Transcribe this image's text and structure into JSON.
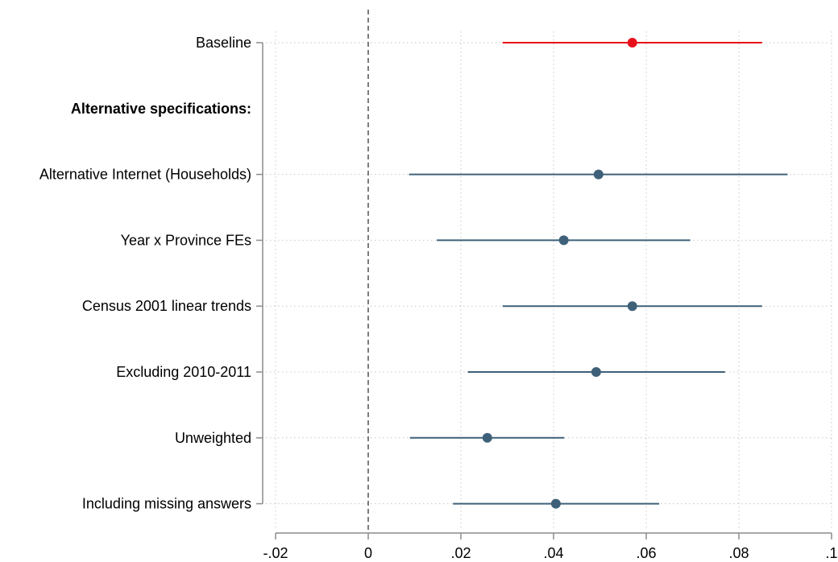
{
  "chart_data": {
    "type": "coefficient_plot",
    "title": "",
    "xlabel": "",
    "ylabel": "",
    "xlim": [
      -0.02,
      0.1
    ],
    "x_ticks": [
      {
        "value": -0.02,
        "label": "-.02"
      },
      {
        "value": 0,
        "label": "0"
      },
      {
        "value": 0.02,
        "label": ".02"
      },
      {
        "value": 0.04,
        "label": ".04"
      },
      {
        "value": 0.06,
        "label": ".06"
      },
      {
        "value": 0.08,
        "label": ".08"
      },
      {
        "value": 0.1,
        "label": ".1"
      }
    ],
    "reference_line": {
      "value": 0,
      "style": "dashed"
    },
    "grid": true,
    "rows": [
      {
        "label": "Baseline",
        "estimate": 0.057,
        "ci_low": 0.029,
        "ci_high": 0.085,
        "color": "#e8101a",
        "bold": false,
        "has_point": true
      },
      {
        "label": "Alternative specifications:",
        "bold": true,
        "has_point": false
      },
      {
        "label": "Alternative Internet (Households)",
        "estimate": 0.0497,
        "ci_low": 0.0088,
        "ci_high": 0.0905,
        "color": "#3e6179",
        "bold": false,
        "has_point": true
      },
      {
        "label": "Year x Province FEs",
        "estimate": 0.0422,
        "ci_low": 0.0148,
        "ci_high": 0.0695,
        "color": "#3e6179",
        "bold": false,
        "has_point": true
      },
      {
        "label": "Census 2001 linear trends",
        "estimate": 0.057,
        "ci_low": 0.029,
        "ci_high": 0.085,
        "color": "#3e6179",
        "bold": false,
        "has_point": true
      },
      {
        "label": "Excluding 2010-2011",
        "estimate": 0.0492,
        "ci_low": 0.0215,
        "ci_high": 0.077,
        "color": "#3e6179",
        "bold": false,
        "has_point": true
      },
      {
        "label": "Unweighted",
        "estimate": 0.0257,
        "ci_low": 0.009,
        "ci_high": 0.0423,
        "color": "#3e6179",
        "bold": false,
        "has_point": true
      },
      {
        "label": "Including missing answers",
        "estimate": 0.0405,
        "ci_low": 0.0183,
        "ci_high": 0.0628,
        "color": "#3e6179",
        "bold": false,
        "has_point": true
      }
    ]
  }
}
